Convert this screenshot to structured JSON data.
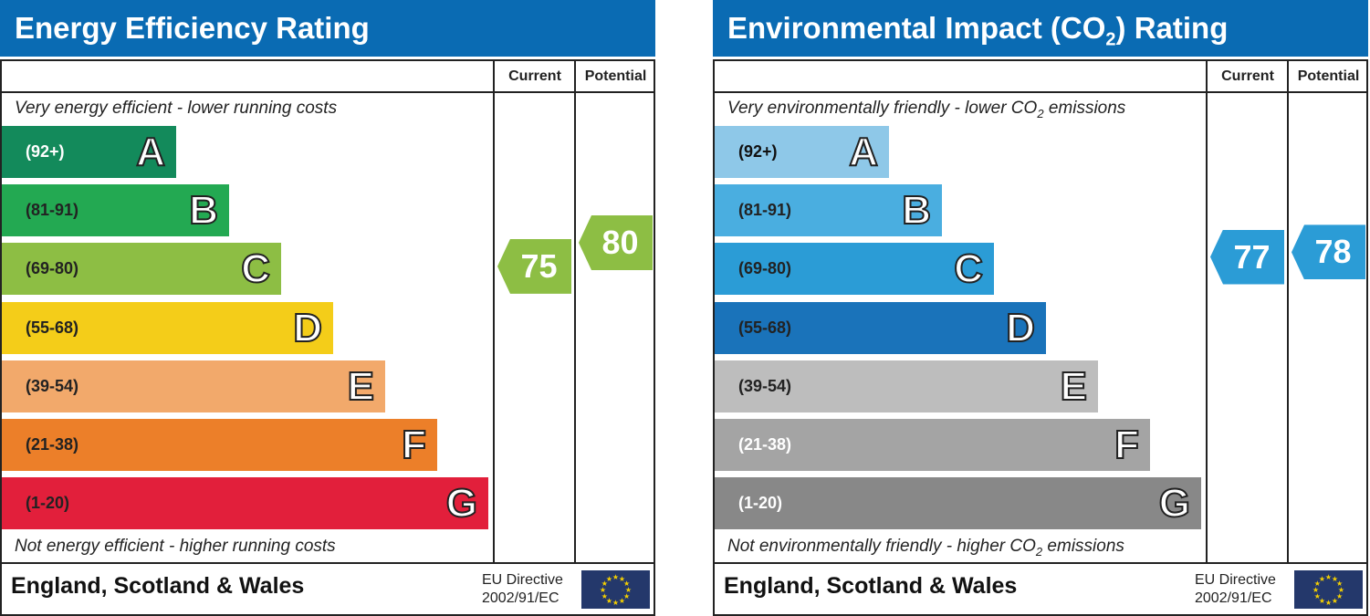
{
  "chart_data": [
    {
      "type": "bar",
      "title": "Energy Efficiency Rating",
      "columns": [
        "Current",
        "Potential"
      ],
      "top_note": "Very energy efficient - lower running costs",
      "bottom_note": "Not energy efficient - higher running costs",
      "bands": [
        {
          "letter": "A",
          "range": "(92+)",
          "min": 92,
          "max": 100,
          "color": "#138a5b",
          "text_color": "#ffffff"
        },
        {
          "letter": "B",
          "range": "(81-91)",
          "min": 81,
          "max": 91,
          "color": "#23a952",
          "text_color": "#222222"
        },
        {
          "letter": "C",
          "range": "(69-80)",
          "min": 69,
          "max": 80,
          "color": "#8dbe44",
          "text_color": "#222222"
        },
        {
          "letter": "D",
          "range": "(55-68)",
          "min": 55,
          "max": 68,
          "color": "#f4cd19",
          "text_color": "#222222"
        },
        {
          "letter": "E",
          "range": "(39-54)",
          "min": 39,
          "max": 54,
          "color": "#f2a96b",
          "text_color": "#222222"
        },
        {
          "letter": "F",
          "range": "(21-38)",
          "min": 21,
          "max": 38,
          "color": "#ec7f29",
          "text_color": "#222222"
        },
        {
          "letter": "G",
          "range": "(1-20)",
          "min": 1,
          "max": 20,
          "color": "#e21f3b",
          "text_color": "#222222"
        }
      ],
      "current": {
        "value": 75,
        "label": "75",
        "color": "#8dbe44"
      },
      "potential": {
        "value": 80,
        "label": "80",
        "color": "#8dbe44"
      },
      "footer": "England, Scotland & Wales",
      "directive": [
        "EU Directive",
        "2002/91/EC"
      ]
    },
    {
      "type": "bar",
      "title": "Environmental Impact (CO2) Rating",
      "columns": [
        "Current",
        "Potential"
      ],
      "top_note": "Very environmentally friendly - lower CO2 emissions",
      "bottom_note": "Not environmentally friendly - higher CO2 emissions",
      "bands": [
        {
          "letter": "A",
          "range": "(92+)",
          "min": 92,
          "max": 100,
          "color": "#8ec8e8",
          "text_color": "#111111"
        },
        {
          "letter": "B",
          "range": "(81-91)",
          "min": 81,
          "max": 91,
          "color": "#4aaee0",
          "text_color": "#222222"
        },
        {
          "letter": "C",
          "range": "(69-80)",
          "min": 69,
          "max": 80,
          "color": "#2b9cd6",
          "text_color": "#222222"
        },
        {
          "letter": "D",
          "range": "(55-68)",
          "min": 55,
          "max": 68,
          "color": "#1a73ba",
          "text_color": "#222222"
        },
        {
          "letter": "E",
          "range": "(39-54)",
          "min": 39,
          "max": 54,
          "color": "#bdbdbd",
          "text_color": "#222222"
        },
        {
          "letter": "F",
          "range": "(21-38)",
          "min": 21,
          "max": 38,
          "color": "#a4a4a4",
          "text_color": "#ffffff"
        },
        {
          "letter": "G",
          "range": "(1-20)",
          "min": 1,
          "max": 20,
          "color": "#888888",
          "text_color": "#ffffff"
        }
      ],
      "current": {
        "value": 77,
        "label": "77",
        "color": "#2b9cd6"
      },
      "potential": {
        "value": 78,
        "label": "78",
        "color": "#2b9cd6"
      },
      "footer": "England, Scotland & Wales",
      "directive": [
        "EU Directive",
        "2002/91/EC"
      ]
    }
  ]
}
